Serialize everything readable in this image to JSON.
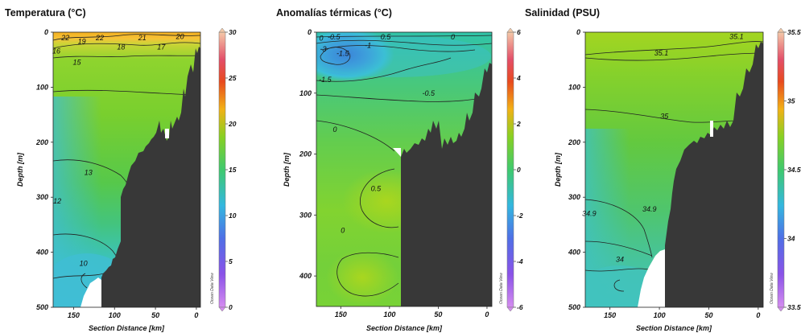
{
  "chart_data": [
    {
      "type": "heatmap",
      "title": "Temperatura (°C)",
      "xlabel": "Section Distance [km]",
      "ylabel": "Depth [m]",
      "xlim": [
        175,
        -5
      ],
      "ylim": [
        0,
        500
      ],
      "x_ticks": [
        150,
        100,
        50,
        0
      ],
      "y_ticks": [
        0,
        100,
        200,
        300,
        400,
        500
      ],
      "colorbar": {
        "range": [
          0,
          30
        ],
        "ticks": [
          0,
          5,
          10,
          15,
          20,
          25,
          30
        ]
      },
      "watermark": "Ocean Data View",
      "contours": [
        {
          "label": "22",
          "x": 160,
          "y": 10
        },
        {
          "label": "19",
          "x": 140,
          "y": 17
        },
        {
          "label": "22",
          "x": 118,
          "y": 10
        },
        {
          "label": "18",
          "x": 92,
          "y": 27
        },
        {
          "label": "21",
          "x": 66,
          "y": 10
        },
        {
          "label": "17",
          "x": 43,
          "y": 27
        },
        {
          "label": "20",
          "x": 20,
          "y": 8
        },
        {
          "label": "16",
          "x": 171,
          "y": 34
        },
        {
          "label": "15",
          "x": 146,
          "y": 55
        },
        {
          "label": "13",
          "x": 132,
          "y": 255
        },
        {
          "label": "12",
          "x": 170,
          "y": 307
        },
        {
          "label": "10",
          "x": 138,
          "y": 420
        }
      ]
    },
    {
      "type": "heatmap",
      "title": "Anomalías térmicas (°C)",
      "xlabel": "Section Distance [km]",
      "ylabel": "Depth [m]",
      "xlim": [
        175,
        -5
      ],
      "ylim": [
        0,
        450
      ],
      "x_ticks": [
        150,
        100,
        50,
        0
      ],
      "y_ticks": [
        0,
        100,
        200,
        300,
        400
      ],
      "colorbar": {
        "range": [
          -6,
          6
        ],
        "ticks": [
          -6,
          -4,
          -2,
          0,
          2,
          4,
          6
        ]
      },
      "watermark": "Ocean Data View",
      "contours": [
        {
          "label": "0",
          "x": 170,
          "y": 10
        },
        {
          "label": "-0.5",
          "x": 157,
          "y": 8
        },
        {
          "label": "0.5",
          "x": 104,
          "y": 8
        },
        {
          "label": "0",
          "x": 35,
          "y": 8
        },
        {
          "label": "-1",
          "x": 122,
          "y": 22
        },
        {
          "label": "-1.5",
          "x": 148,
          "y": 35
        },
        {
          "label": "-3",
          "x": 168,
          "y": 28
        },
        {
          "label": "-1.5",
          "x": 166,
          "y": 78
        },
        {
          "label": "-0.5",
          "x": 60,
          "y": 100
        },
        {
          "label": "0",
          "x": 156,
          "y": 160
        },
        {
          "label": "0.5",
          "x": 114,
          "y": 257
        },
        {
          "label": "0",
          "x": 148,
          "y": 325
        }
      ]
    },
    {
      "type": "heatmap",
      "title": "Salinidad (PSU)",
      "xlabel": "Section Distance [km]",
      "ylabel": "Depth [m]",
      "xlim": [
        175,
        -5
      ],
      "ylim": [
        0,
        500
      ],
      "x_ticks": [
        150,
        100,
        50,
        0
      ],
      "y_ticks": [
        0,
        100,
        200,
        300,
        400,
        500
      ],
      "colorbar": {
        "range": [
          33.5,
          35.5
        ],
        "ticks": [
          33.5,
          34,
          34.5,
          35,
          35.5
        ]
      },
      "watermark": "Ocean Data View",
      "contours": [
        {
          "label": "35.1",
          "x": 22,
          "y": 8
        },
        {
          "label": "35.1",
          "x": 98,
          "y": 38
        },
        {
          "label": "35",
          "x": 95,
          "y": 153
        },
        {
          "label": "34.9",
          "x": 110,
          "y": 322
        },
        {
          "label": "34.9",
          "x": 171,
          "y": 330
        },
        {
          "label": "34",
          "x": 140,
          "y": 413
        }
      ]
    }
  ]
}
